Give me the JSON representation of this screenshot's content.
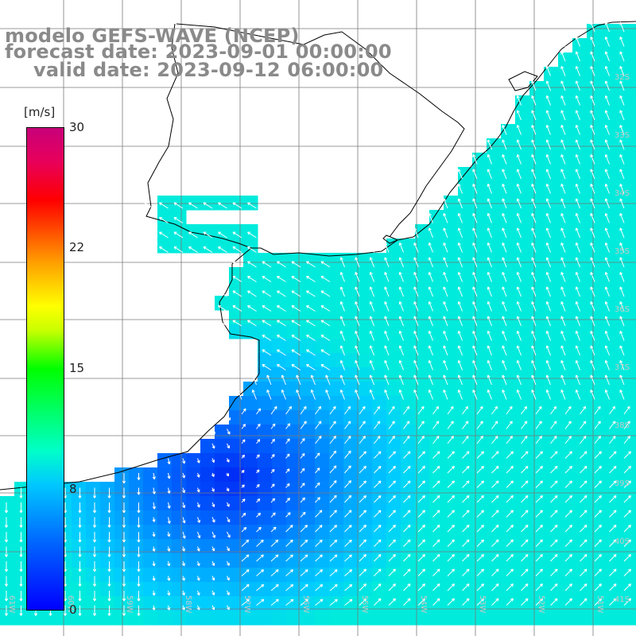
{
  "title": {
    "line1": "modelo GEFS-WAVE (NCEP)",
    "line2": "forecast date: 2023-09-01 00:00:00",
    "line3": "valid date: 2023-09-12 06:00:00"
  },
  "colorbar": {
    "unit": "[m/s]",
    "ticks": [
      "30",
      "22",
      "15",
      "8",
      "0"
    ],
    "tick_values": [
      30,
      22,
      15,
      8,
      0
    ],
    "range": [
      0,
      30
    ],
    "colors": [
      "#0000ff",
      "#0066ff",
      "#00c8ff",
      "#00ffc8",
      "#00ff00",
      "#c8ff00",
      "#ffff00",
      "#ffa000",
      "#ff3c00",
      "#ff0000",
      "#c8007a"
    ]
  },
  "map": {
    "region": "South Atlantic coast (southern Brazil, Uruguay, Argentina)",
    "variable": "wind speed and direction",
    "land_color": "#ffffff",
    "grid_color": "#808080",
    "coast_color": "#000000",
    "lat_labels": [
      "32S",
      "33S",
      "34S",
      "35S",
      "36S",
      "37S",
      "38S",
      "39S",
      "40S",
      "41S"
    ],
    "lon_labels": [
      "61W",
      "60W",
      "59W",
      "58W",
      "57W",
      "56W",
      "55W",
      "54W",
      "53W",
      "52W",
      "51W"
    ]
  }
}
